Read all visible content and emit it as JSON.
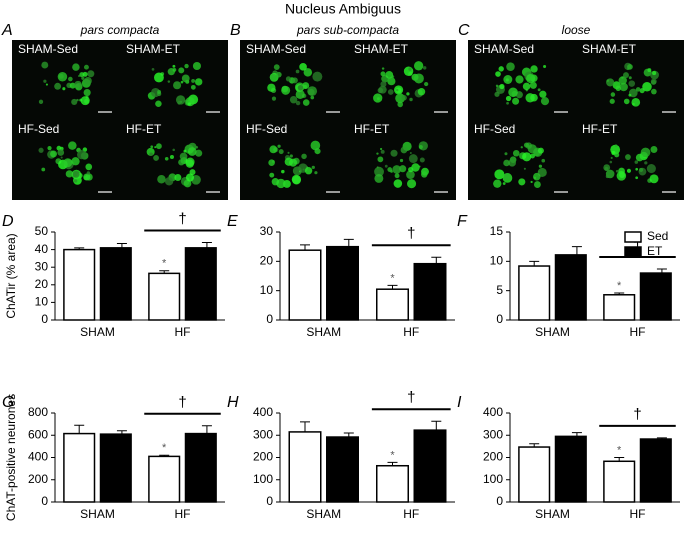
{
  "title": "Nucleus Ambiguus",
  "micrographs": [
    {
      "panel": "A",
      "title": "pars compacta",
      "labels": [
        "SHAM-Sed",
        "SHAM-ET",
        "HF-Sed",
        "HF-ET"
      ]
    },
    {
      "panel": "B",
      "title": "pars sub-compacta",
      "labels": [
        "SHAM-Sed",
        "SHAM-ET",
        "HF-Sed",
        "HF-ET"
      ]
    },
    {
      "panel": "C",
      "title": "loose",
      "labels": [
        "SHAM-Sed",
        "SHAM-ET",
        "HF-Sed",
        "HF-ET"
      ]
    }
  ],
  "chart_data": [
    {
      "type": "bar",
      "panel": "D",
      "ylabel": "ChATir (% area)",
      "categories": [
        "SHAM",
        "HF"
      ],
      "series": [
        {
          "color": "#ffffff",
          "values": [
            40,
            26.5
          ],
          "errors": [
            1,
            1.5
          ]
        },
        {
          "color": "#000000",
          "values": [
            41,
            41
          ],
          "errors": [
            2.5,
            3
          ]
        }
      ],
      "ylim": [
        0,
        50
      ],
      "yticks": [
        0,
        10,
        20,
        30,
        40,
        50
      ],
      "annotations": [
        "*",
        "†"
      ]
    },
    {
      "type": "bar",
      "panel": "E",
      "categories": [
        "SHAM",
        "HF"
      ],
      "series": [
        {
          "color": "#ffffff",
          "values": [
            23.8,
            10.5
          ],
          "errors": [
            1.8,
            1.3
          ]
        },
        {
          "color": "#000000",
          "values": [
            25,
            19.2
          ],
          "errors": [
            2.5,
            2.2
          ]
        }
      ],
      "ylim": [
        0,
        30
      ],
      "yticks": [
        0,
        10,
        20,
        30
      ],
      "annotations": [
        "*",
        "†"
      ]
    },
    {
      "type": "bar",
      "panel": "F",
      "categories": [
        "SHAM",
        "HF"
      ],
      "series": [
        {
          "name": "Sed",
          "color": "#ffffff",
          "values": [
            9.2,
            4.3
          ],
          "errors": [
            0.8,
            0.3
          ]
        },
        {
          "name": "ET",
          "color": "#000000",
          "values": [
            11.1,
            8
          ],
          "errors": [
            1.4,
            0.7
          ]
        }
      ],
      "ylim": [
        0,
        15
      ],
      "yticks": [
        0,
        5,
        10,
        15
      ],
      "annotations": [
        "*",
        "†"
      ],
      "legend": "upper right"
    },
    {
      "type": "bar",
      "panel": "G",
      "ylabel": "ChAT-positive neurones",
      "categories": [
        "SHAM",
        "HF"
      ],
      "series": [
        {
          "color": "#ffffff",
          "values": [
            615,
            410
          ],
          "errors": [
            75,
            10
          ]
        },
        {
          "color": "#000000",
          "values": [
            610,
            615
          ],
          "errors": [
            30,
            70
          ]
        }
      ],
      "ylim": [
        0,
        800
      ],
      "yticks": [
        0,
        200,
        400,
        600,
        800
      ],
      "annotations": [
        "*",
        "†"
      ]
    },
    {
      "type": "bar",
      "panel": "H",
      "categories": [
        "SHAM",
        "HF"
      ],
      "series": [
        {
          "color": "#ffffff",
          "values": [
            315,
            163
          ],
          "errors": [
            45,
            15
          ]
        },
        {
          "color": "#000000",
          "values": [
            292,
            323
          ],
          "errors": [
            18,
            40
          ]
        }
      ],
      "ylim": [
        0,
        400
      ],
      "yticks": [
        0,
        100,
        200,
        300,
        400
      ],
      "annotations": [
        "*",
        "†"
      ]
    },
    {
      "type": "bar",
      "panel": "I",
      "categories": [
        "SHAM",
        "HF"
      ],
      "series": [
        {
          "color": "#ffffff",
          "values": [
            247,
            183
          ],
          "errors": [
            15,
            17
          ]
        },
        {
          "color": "#000000",
          "values": [
            295,
            283
          ],
          "errors": [
            17,
            5
          ]
        }
      ],
      "ylim": [
        0,
        400
      ],
      "yticks": [
        0,
        100,
        200,
        300,
        400
      ],
      "annotations": [
        "*",
        "†"
      ]
    }
  ]
}
